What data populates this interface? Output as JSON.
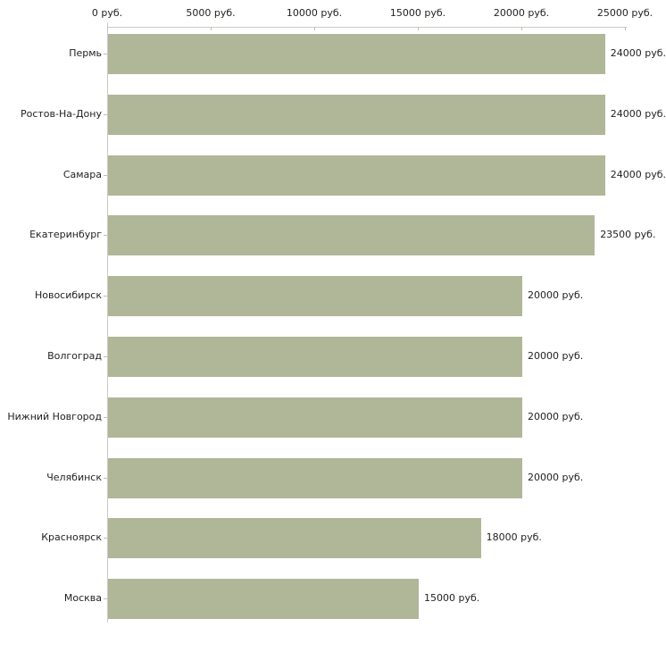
{
  "chart_data": {
    "type": "bar",
    "orientation": "horizontal",
    "title": "",
    "categories": [
      "Пермь",
      "Ростов-На-Дону",
      "Самара",
      "Екатеринбург",
      "Новосибирск",
      "Волгоград",
      "Нижний Новгород",
      "Челябинск",
      "Красноярск",
      "Москва"
    ],
    "values": [
      24000,
      24000,
      24000,
      23500,
      20000,
      20000,
      20000,
      20000,
      18000,
      15000
    ],
    "value_labels": [
      "24000 руб.",
      "24000 руб.",
      "24000 руб.",
      "23500 руб.",
      "20000 руб.",
      "20000 руб.",
      "20000 руб.",
      "20000 руб.",
      "18000 руб.",
      "15000 руб."
    ],
    "x_axis": {
      "position": "top",
      "unit": "руб.",
      "min": 0,
      "max": 25000,
      "tick_interval": 5000,
      "ticks": [
        {
          "value": 0,
          "label": "0 руб."
        },
        {
          "value": 5000,
          "label": "5000 руб."
        },
        {
          "value": 10000,
          "label": "10000 руб."
        },
        {
          "value": 15000,
          "label": "15000 руб."
        },
        {
          "value": 20000,
          "label": "20000 руб."
        },
        {
          "value": 25000,
          "label": "25000 руб."
        }
      ]
    },
    "legend": null,
    "grid": false,
    "colors": {
      "bar": "#b0b698",
      "axis_line": "#c9c9c5",
      "tick_mark": "#c2c2a2",
      "text": "#1f1f1f",
      "background": "#ffffff"
    }
  }
}
